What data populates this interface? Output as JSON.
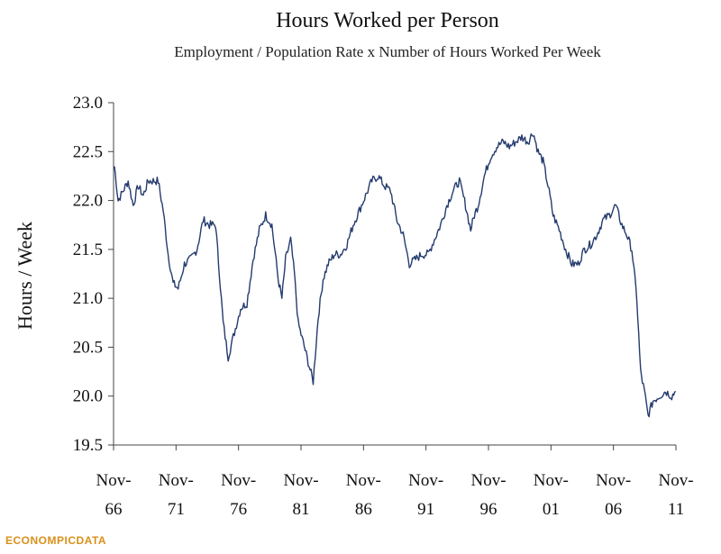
{
  "chart_data": {
    "type": "line",
    "title": "Hours Worked per Person",
    "subtitle": "Employment / Population Rate x Number of Hours Worked Per Week",
    "xlabel": "",
    "ylabel": "Hours / Week",
    "ylim": [
      19.5,
      23.0
    ],
    "yticks": [
      "23.0",
      "22.5",
      "22.0",
      "21.5",
      "21.0",
      "20.5",
      "20.0",
      "19.5"
    ],
    "xlim": [
      1966.83,
      2011.83
    ],
    "xticks": [
      {
        "year": 1966.83,
        "line1": "Nov-",
        "line2": "66"
      },
      {
        "year": 1971.83,
        "line1": "Nov-",
        "line2": "71"
      },
      {
        "year": 1976.83,
        "line1": "Nov-",
        "line2": "76"
      },
      {
        "year": 1981.83,
        "line1": "Nov-",
        "line2": "81"
      },
      {
        "year": 1986.83,
        "line1": "Nov-",
        "line2": "86"
      },
      {
        "year": 1991.83,
        "line1": "Nov-",
        "line2": "91"
      },
      {
        "year": 1996.83,
        "line1": "Nov-",
        "line2": "96"
      },
      {
        "year": 2001.83,
        "line1": "Nov-",
        "line2": "01"
      },
      {
        "year": 2006.83,
        "line1": "Nov-",
        "line2": "06"
      },
      {
        "year": 2011.83,
        "line1": "Nov-",
        "line2": "11"
      }
    ],
    "series": [
      {
        "name": "Hours Worked per Person",
        "color": "#243b6e",
        "x": [
          1966.9,
          1967.2,
          1967.6,
          1968.0,
          1968.4,
          1968.8,
          1969.2,
          1969.6,
          1970.0,
          1970.4,
          1970.8,
          1971.2,
          1971.6,
          1972.0,
          1972.5,
          1973.0,
          1973.5,
          1974.0,
          1974.5,
          1975.0,
          1975.3,
          1975.6,
          1976.0,
          1976.5,
          1977.0,
          1977.5,
          1978.0,
          1978.5,
          1979.0,
          1979.5,
          1980.0,
          1980.3,
          1980.6,
          1981.0,
          1981.3,
          1981.6,
          1982.0,
          1982.4,
          1982.8,
          1983.2,
          1983.6,
          1984.0,
          1984.5,
          1985.0,
          1985.5,
          1986.0,
          1986.5,
          1987.0,
          1987.5,
          1988.0,
          1988.5,
          1989.0,
          1989.5,
          1990.0,
          1990.5,
          1991.0,
          1991.5,
          1992.0,
          1992.5,
          1993.0,
          1993.5,
          1994.0,
          1994.5,
          1995.0,
          1995.4,
          1995.7,
          1996.0,
          1996.5,
          1997.0,
          1997.5,
          1998.0,
          1998.5,
          1999.0,
          1999.5,
          2000.0,
          2000.4,
          2000.8,
          2001.2,
          2001.6,
          2002.0,
          2002.5,
          2003.0,
          2003.5,
          2004.0,
          2004.5,
          2005.0,
          2005.5,
          2006.0,
          2006.5,
          2007.0,
          2007.5,
          2007.9,
          2008.3,
          2008.7,
          2009.0,
          2009.3,
          2009.6,
          2010.0,
          2010.5,
          2011.0,
          2011.5,
          2011.8
        ],
        "values": [
          22.35,
          22.0,
          22.1,
          22.2,
          21.95,
          22.15,
          22.05,
          22.2,
          22.2,
          22.2,
          21.9,
          21.45,
          21.15,
          21.1,
          21.35,
          21.4,
          21.5,
          21.8,
          21.75,
          21.75,
          21.25,
          20.75,
          20.4,
          20.65,
          20.9,
          20.95,
          21.4,
          21.7,
          21.85,
          21.75,
          21.2,
          21.0,
          21.4,
          21.6,
          21.25,
          20.75,
          20.55,
          20.35,
          20.15,
          20.8,
          21.2,
          21.35,
          21.45,
          21.45,
          21.55,
          21.75,
          21.9,
          22.05,
          22.2,
          22.25,
          22.15,
          22.1,
          21.8,
          21.65,
          21.35,
          21.4,
          21.45,
          21.45,
          21.6,
          21.75,
          21.95,
          22.1,
          22.2,
          21.95,
          21.7,
          21.85,
          21.95,
          22.25,
          22.45,
          22.55,
          22.6,
          22.55,
          22.6,
          22.65,
          22.6,
          22.7,
          22.5,
          22.4,
          22.15,
          21.85,
          21.7,
          21.5,
          21.35,
          21.35,
          21.5,
          21.55,
          21.65,
          21.8,
          21.85,
          21.95,
          21.75,
          21.65,
          21.5,
          21.0,
          20.25,
          20.05,
          19.8,
          19.95,
          20.0,
          20.05,
          20.0,
          20.05
        ]
      }
    ],
    "source_logo": "ECONOMPICDATA"
  }
}
